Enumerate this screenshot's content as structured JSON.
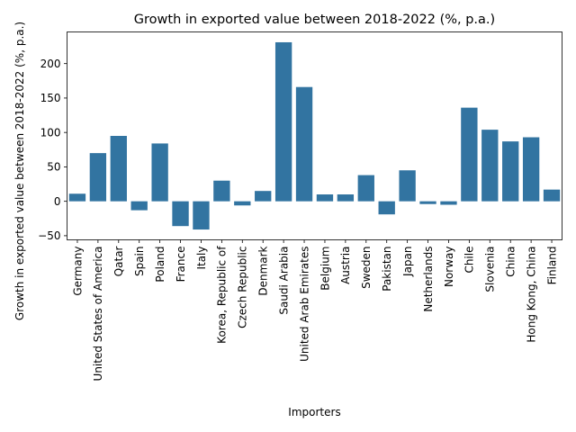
{
  "chart_data": {
    "type": "bar",
    "title": "Growth in exported value between 2018-2022 (%, p.a.)",
    "xlabel": "Importers",
    "ylabel": "Growth in exported value between 2018-2022 (%, p.a.)",
    "categories": [
      "Germany",
      "United States of America",
      "Qatar",
      "Spain",
      "Poland",
      "France",
      "Italy",
      "Korea, Republic of",
      "Czech Republic",
      "Denmark",
      "Saudi Arabia",
      "United Arab Emirates",
      "Belgium",
      "Austria",
      "Sweden",
      "Pakistan",
      "Japan",
      "Netherlands",
      "Norway",
      "Chile",
      "Slovenia",
      "China",
      "Hong Kong, China",
      "Finland"
    ],
    "values": [
      11,
      70,
      95,
      -13,
      84,
      -36,
      -41,
      30,
      -6,
      15,
      231,
      166,
      10,
      10,
      38,
      -19,
      45,
      -4,
      -5,
      136,
      104,
      87,
      93,
      17
    ],
    "ylim": [
      -56,
      246
    ],
    "yticks": [
      -50,
      0,
      50,
      100,
      150,
      200
    ],
    "ytick_labels": [
      "−50",
      "0",
      "50",
      "100",
      "150",
      "200"
    ],
    "grid": false,
    "color": "#3274a1"
  }
}
